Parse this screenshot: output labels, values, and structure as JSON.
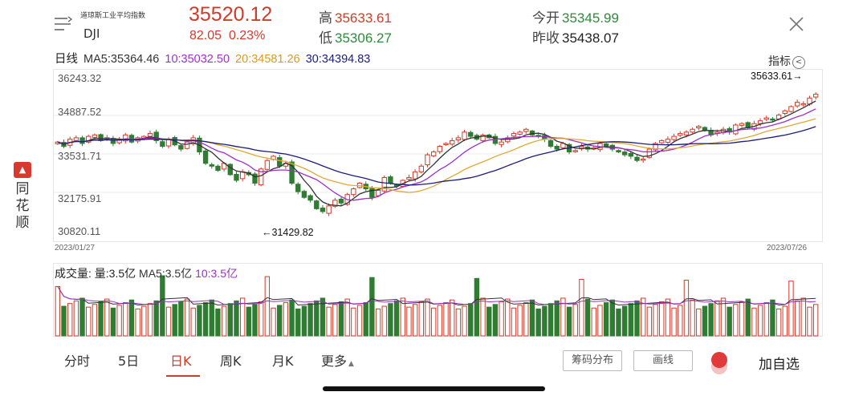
{
  "brand": {
    "name_chars": [
      "同",
      "花",
      "顺"
    ]
  },
  "header": {
    "index_name": "道琼斯工业平均指数",
    "index_code": "DJI",
    "price": "35520.12",
    "change": "82.05",
    "change_pct": "0.23%",
    "high_label": "高",
    "high_value": "35633.61",
    "low_label": "低",
    "low_value": "35306.27",
    "open_label": "今开",
    "open_value": "35345.99",
    "prev_close_label": "昨收",
    "prev_close_value": "35438.07"
  },
  "ma_bar": {
    "period": "日线",
    "ma5": "MA5:35364.46",
    "ma10": "10:35032.50",
    "ma20": "20:34581.26",
    "ma30": "30:34394.83",
    "indicator_label": "指标"
  },
  "y_axis": {
    "labels": [
      "36243.32",
      "34887.52",
      "33531.71",
      "32175.91",
      "30820.11"
    ]
  },
  "dates": {
    "start": "2023/01/27",
    "end": "2023/07/26"
  },
  "annotations": {
    "high": "35633.61→",
    "low": "←31429.82"
  },
  "volume_bar": {
    "label": "成交量:",
    "vol": "量:3.5亿",
    "ma5": "MA5:3.5亿",
    "ma10": "10:3.5亿"
  },
  "tabs": [
    "分时",
    "5日",
    "日K",
    "周K",
    "月K",
    "更多"
  ],
  "active_tab": "日K",
  "tools": {
    "chips": "筹码分布",
    "draw": "画线",
    "watchlist": "加自选"
  },
  "colors": {
    "up": "#d23a2a",
    "down": "#2e7d32",
    "ma5": "#333333",
    "ma10": "#9b30c8",
    "ma20": "#e0a830",
    "ma30": "#1c1c7a"
  },
  "chart_data": {
    "type": "candlestick",
    "y_range": [
      30820.11,
      36243.32
    ],
    "x_range": [
      "2023/01/27",
      "2023/07/26"
    ],
    "closes": [
      33950,
      33800,
      34050,
      34100,
      33900,
      34150,
      34200,
      34000,
      34100,
      33900,
      34050,
      34200,
      33950,
      34100,
      34150,
      34250,
      34000,
      33800,
      34050,
      33850,
      33700,
      33950,
      34100,
      33600,
      33200,
      33100,
      32950,
      33200,
      32800,
      32600,
      32900,
      32800,
      32500,
      33000,
      33300,
      33450,
      33100,
      33200,
      32500,
      32200,
      32000,
      31900,
      31600,
      31500,
      31700,
      31900,
      31800,
      32100,
      32300,
      32500,
      32300,
      32000,
      32250,
      32700,
      32500,
      32400,
      32600,
      32700,
      32900,
      33100,
      33500,
      33600,
      33800,
      33900,
      34000,
      34100,
      34300,
      34150,
      34050,
      34200,
      34100,
      33900,
      33950,
      34100,
      34250,
      34300,
      34400,
      34200,
      34150,
      34050,
      33800,
      33700,
      33900,
      33600,
      33650,
      33800,
      33700,
      33750,
      33900,
      33800,
      33700,
      33600,
      33500,
      33450,
      33300,
      33350,
      33700,
      33900,
      34000,
      34050,
      34150,
      34250,
      34300,
      34400,
      34500,
      34350,
      34200,
      34300,
      34400,
      34300,
      34550,
      34600,
      34450,
      34600,
      34700,
      34800,
      34750,
      34900,
      35050,
      35200,
      35350,
      35300,
      35500,
      35633
    ]
  }
}
